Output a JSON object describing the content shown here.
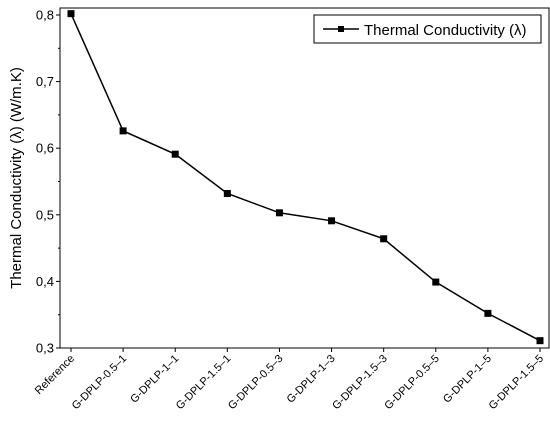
{
  "chart_data": {
    "type": "line",
    "title": "",
    "xlabel": "",
    "ylabel": "Thermal Conductivity (λ) (W/m.K)",
    "ylim": [
      0.3,
      0.8
    ],
    "y_ticks": [
      "0,3",
      "0,4",
      "0,5",
      "0,6",
      "0,7",
      "0,8"
    ],
    "grid": false,
    "legend_position": "top-right",
    "categories": [
      "Reference",
      "G-DPLP-0.5–1",
      "G-DPLP-1–1",
      "G-DPLP-1.5–1",
      "G-DPLP-0.5–3",
      "G-DPLP-1–3",
      "G-DPLP-1.5–3",
      "G-DPLP-0.5–5",
      "G-DPLP-1–5",
      "G-DPLP-1.5–5"
    ],
    "series": [
      {
        "name": "Thermal Conductivity (λ)",
        "color": "#000000",
        "marker": "square",
        "values": [
          0.802,
          0.626,
          0.591,
          0.532,
          0.503,
          0.491,
          0.464,
          0.399,
          0.352,
          0.311
        ]
      }
    ]
  }
}
